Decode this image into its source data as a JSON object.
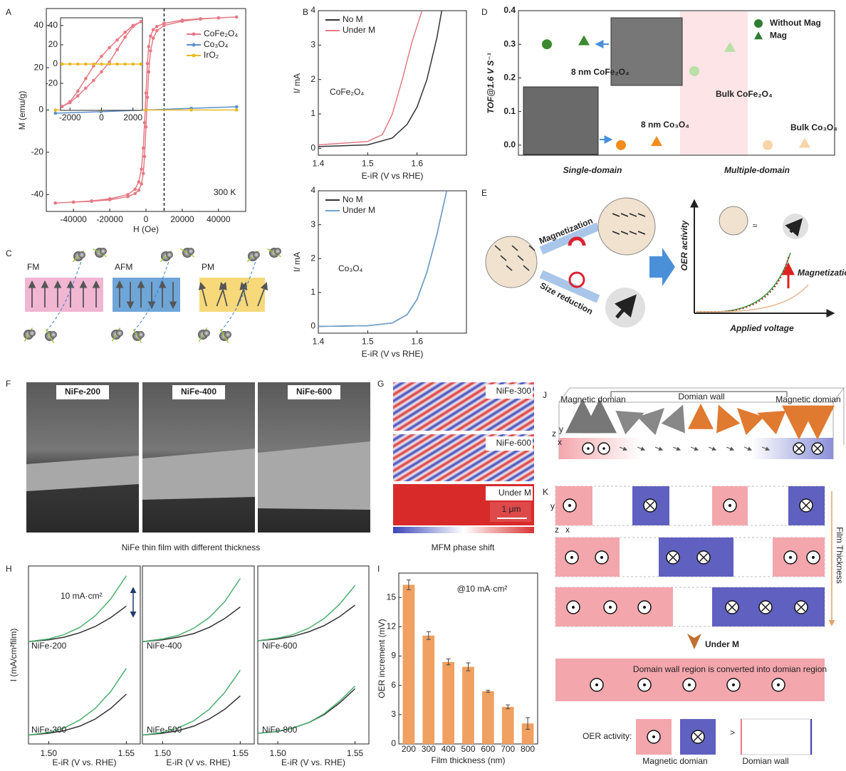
{
  "panel_letters": [
    "A",
    "B",
    "C",
    "D",
    "E",
    "F",
    "G",
    "H",
    "I",
    "J",
    "K"
  ],
  "chart_data": [
    {
      "type": "line",
      "xlabel": "H (Oe)",
      "ylabel": "M (emu/g)",
      "xlim": [
        -55000,
        55000
      ],
      "ylim": [
        -48,
        48
      ],
      "xticks": [
        -40000,
        -20000,
        0,
        20000,
        40000
      ],
      "yticks": [
        -40,
        -20,
        0,
        20,
        40
      ],
      "vline": 10000,
      "legend": "upper right",
      "annotations": [
        "300 K"
      ],
      "series": [
        {
          "name": "CoFe₂O₄",
          "color": "#e57a85",
          "marker": "o",
          "x": [
            -50000,
            -40000,
            -30000,
            -20000,
            -10000,
            -6000,
            -4000,
            -2500,
            -1500,
            -800,
            0,
            800,
            1500,
            2500,
            4000,
            6000,
            10000,
            20000,
            30000,
            40000,
            50000,
            40000,
            30000,
            20000,
            10000,
            6000,
            4000,
            2500,
            1500,
            800,
            0,
            -800,
            -1500,
            -2500,
            -4000,
            -6000,
            -10000,
            -20000,
            -30000,
            -40000,
            -50000
          ],
          "values": [
            -44,
            -43.6,
            -43.2,
            -42.5,
            -41,
            -39.5,
            -38,
            -35,
            -30,
            -22,
            -8,
            6,
            18,
            28,
            34,
            37.5,
            40,
            42,
            43,
            43.6,
            44,
            43.6,
            43.2,
            42.5,
            41,
            39.5,
            38,
            35,
            30,
            22,
            8,
            -6,
            -18,
            -28,
            -34,
            -37.5,
            -40,
            -42,
            -43,
            -43.6,
            -44
          ]
        },
        {
          "name": "Co₃O₄",
          "color": "#5b8fc9",
          "marker": "o",
          "x": [
            -50000,
            -25000,
            0,
            25000,
            50000
          ],
          "values": [
            -1.5,
            -0.8,
            0,
            0.8,
            1.5
          ]
        },
        {
          "name": "IrO₂",
          "color": "#e8b923",
          "marker": "o",
          "x": [
            -50000,
            -25000,
            0,
            25000,
            50000
          ],
          "values": [
            0,
            0,
            0,
            0,
            0
          ]
        }
      ]
    },
    {
      "type": "line",
      "xlim": [
        -2600,
        2600
      ],
      "ylim": [
        -48,
        48
      ],
      "xticks": [
        -2000,
        0,
        2000
      ],
      "yticks": [
        -20,
        0,
        20,
        40
      ],
      "series": [
        {
          "color": "#e57a85",
          "marker": "o",
          "x": [
            -2500,
            -2000,
            -1500,
            -1000,
            -500,
            0,
            500,
            1000,
            1500,
            2000,
            2500,
            2000,
            1500,
            1000,
            500,
            0,
            -500,
            -1000,
            -1500,
            -2000,
            -2500
          ],
          "values": [
            -44,
            -40,
            -33,
            -25,
            -17,
            -8,
            2,
            15,
            28,
            39,
            44,
            40,
            33,
            25,
            17,
            8,
            -2,
            -15,
            -28,
            -39,
            -44
          ]
        },
        {
          "color": "#e8b923",
          "marker": "o",
          "x": [
            -2500,
            -2000,
            -1500,
            -1000,
            -500,
            0,
            500,
            1000,
            1500,
            2000,
            2500
          ],
          "values": [
            0,
            0,
            0,
            0,
            0,
            0,
            0,
            0,
            0,
            0,
            0
          ]
        }
      ]
    },
    {
      "type": "line",
      "xlabel": "E-iR (V vs RHE)",
      "ylabel": "I/ mA",
      "xlim": [
        1.4,
        1.7
      ],
      "ylim": [
        -0.2,
        4
      ],
      "xticks": [
        1.4,
        1.5,
        1.6
      ],
      "yticks": [
        0,
        1,
        2,
        3,
        4
      ],
      "legend": "upper left",
      "annotations": [
        "CoFe₂O₄"
      ],
      "series": [
        {
          "name": "No M",
          "color": "#333333",
          "x": [
            1.4,
            1.5,
            1.55,
            1.58,
            1.6,
            1.62,
            1.64,
            1.65
          ],
          "values": [
            0.05,
            0.1,
            0.3,
            0.7,
            1.2,
            2,
            3.2,
            4
          ]
        },
        {
          "name": "Under M",
          "color": "#e57a85",
          "x": [
            1.4,
            1.5,
            1.53,
            1.55,
            1.57,
            1.59,
            1.61
          ],
          "values": [
            0.1,
            0.2,
            0.4,
            1,
            2,
            3.1,
            4
          ]
        }
      ]
    },
    {
      "type": "line",
      "xlabel": "E-iR (V vs RHE)",
      "ylabel": "I/ mA",
      "xlim": [
        1.4,
        1.7
      ],
      "ylim": [
        -0.2,
        4
      ],
      "xticks": [
        1.4,
        1.5,
        1.6
      ],
      "yticks": [
        0,
        1,
        2,
        3,
        4
      ],
      "legend": "upper left",
      "annotations": [
        "Co₃O₄"
      ],
      "series": [
        {
          "name": "No M",
          "color": "#333333",
          "x": [
            1.4,
            1.5,
            1.55,
            1.58,
            1.6,
            1.62,
            1.64,
            1.66
          ],
          "values": [
            0,
            0.02,
            0.1,
            0.35,
            0.8,
            1.6,
            2.7,
            4
          ]
        },
        {
          "name": "Under M",
          "color": "#6fa3d0",
          "x": [
            1.4,
            1.5,
            1.55,
            1.58,
            1.6,
            1.62,
            1.64,
            1.66
          ],
          "values": [
            0,
            0.02,
            0.1,
            0.35,
            0.8,
            1.6,
            2.7,
            4
          ]
        }
      ]
    },
    {
      "type": "scatter",
      "ylabel": "TOF@1.6 V S⁻¹",
      "ylim": [
        -0.03,
        0.4
      ],
      "yticks": [
        {
          "value": 0,
          "label": "0.0"
        },
        0.1,
        0.2,
        0.3,
        0.4
      ],
      "groups": [
        "Single-domain",
        "Multiple-domain"
      ],
      "legend": "upper right",
      "annotations": [
        "8 nm CoFe₂O₄",
        "8 nm Co₃O₄",
        "Bulk CoFe₂O₄",
        "Bulk Co₃O₄"
      ],
      "series": [
        {
          "name": "Without Mag",
          "marker": "o",
          "color": "#2e7d32",
          "colors": [
            "#3a8a2e",
            "#f28c1e",
            "#b8e0a8",
            "#f8d4a8"
          ],
          "values": [
            0.3,
            0,
            0.22,
            0
          ]
        },
        {
          "name": "Mag",
          "marker": "^",
          "color": "#2e7d32",
          "colors": [
            "#3a8a2e",
            "#f28c1e",
            "#b8e0a8",
            "#f8d4a8"
          ],
          "values": [
            0.31,
            0.01,
            0.29,
            0.005
          ]
        }
      ]
    },
    {
      "type": "line",
      "ylabel": "I (mA/cm²film)",
      "xlim": [
        1.487,
        1.559
      ],
      "ylim": [
        0,
        10
      ],
      "annotations": [
        "NiFe-200",
        "10 mA·cm²"
      ],
      "series": [
        {
          "color": "#333333",
          "x": [
            1.487,
            1.5,
            1.51,
            1.52,
            1.53,
            1.54,
            1.55
          ],
          "values": [
            1.5,
            1.7,
            2,
            2.5,
            3.2,
            4.2,
            5.5
          ]
        },
        {
          "color": "#4caf70",
          "x": [
            1.487,
            1.5,
            1.51,
            1.52,
            1.53,
            1.54,
            1.55
          ],
          "values": [
            1.5,
            1.8,
            2.3,
            3.1,
            4.4,
            6.3,
            8.9
          ]
        }
      ]
    },
    {
      "type": "line",
      "xlim": [
        1.487,
        1.559
      ],
      "ylim": [
        0,
        10
      ],
      "annotations": [
        "NiFe-400"
      ],
      "series": [
        {
          "color": "#333333",
          "x": [
            1.487,
            1.5,
            1.51,
            1.52,
            1.53,
            1.54,
            1.55
          ],
          "values": [
            1.5,
            1.7,
            2,
            2.4,
            3.1,
            4.1,
            5.4
          ]
        },
        {
          "color": "#4caf70",
          "x": [
            1.487,
            1.5,
            1.51,
            1.52,
            1.53,
            1.54,
            1.55
          ],
          "values": [
            1.5,
            1.8,
            2.2,
            3,
            4.2,
            6,
            8.6
          ]
        }
      ]
    },
    {
      "type": "line",
      "xlim": [
        1.487,
        1.559
      ],
      "ylim": [
        0,
        10
      ],
      "annotations": [
        "NiFe-600"
      ],
      "series": [
        {
          "color": "#333333",
          "x": [
            1.487,
            1.5,
            1.51,
            1.52,
            1.53,
            1.54,
            1.55
          ],
          "values": [
            1.6,
            1.8,
            2.1,
            2.6,
            3.3,
            4.3,
            5.6
          ]
        },
        {
          "color": "#4caf70",
          "x": [
            1.487,
            1.5,
            1.51,
            1.52,
            1.53,
            1.54,
            1.55
          ],
          "values": [
            1.6,
            1.9,
            2.3,
            3,
            4.1,
            5.7,
            7.8
          ]
        }
      ]
    },
    {
      "type": "line",
      "xlabel": "E-iR (V vs. RHE)",
      "xlim": [
        1.487,
        1.559
      ],
      "ylim": [
        0,
        10
      ],
      "xticks": [
        {
          "value": 1.5,
          "label": "1.50"
        },
        1.55
      ],
      "annotations": [
        "NiFe-300"
      ],
      "series": [
        {
          "color": "#333333",
          "x": [
            1.487,
            1.5,
            1.51,
            1.52,
            1.53,
            1.54,
            1.55
          ],
          "values": [
            1,
            1.2,
            1.5,
            2,
            2.8,
            4,
            5.6
          ]
        },
        {
          "color": "#4caf70",
          "x": [
            1.487,
            1.5,
            1.51,
            1.52,
            1.53,
            1.54,
            1.55
          ],
          "values": [
            1,
            1.3,
            1.8,
            2.7,
            4,
            5.9,
            8.5
          ]
        }
      ]
    },
    {
      "type": "line",
      "xlabel": "E-iR (V vs. RHE)",
      "xlim": [
        1.487,
        1.559
      ],
      "ylim": [
        0,
        10
      ],
      "xticks": [
        {
          "value": 1.5,
          "label": "1.50"
        },
        1.55
      ],
      "annotations": [
        "NiFe-500"
      ],
      "series": [
        {
          "color": "#333333",
          "x": [
            1.487,
            1.5,
            1.51,
            1.52,
            1.53,
            1.54,
            1.55
          ],
          "values": [
            1,
            1.2,
            1.5,
            2,
            2.8,
            3.9,
            5.4
          ]
        },
        {
          "color": "#4caf70",
          "x": [
            1.487,
            1.5,
            1.51,
            1.52,
            1.53,
            1.54,
            1.55
          ],
          "values": [
            1,
            1.3,
            1.8,
            2.6,
            3.9,
            5.8,
            8.3
          ]
        }
      ]
    },
    {
      "type": "line",
      "xlabel": "E-iR (V vs. RHE)",
      "xlim": [
        1.487,
        1.559
      ],
      "ylim": [
        0,
        10
      ],
      "xticks": [
        {
          "value": 1.5,
          "label": "1.50"
        },
        1.55
      ],
      "annotations": [
        "NiFe-800"
      ],
      "series": [
        {
          "color": "#333333",
          "x": [
            1.487,
            1.5,
            1.51,
            1.52,
            1.53,
            1.54,
            1.55
          ],
          "values": [
            1.2,
            1.4,
            1.8,
            2.4,
            3.3,
            4.6,
            6.2
          ]
        },
        {
          "color": "#4caf70",
          "x": [
            1.487,
            1.5,
            1.51,
            1.52,
            1.53,
            1.54,
            1.55
          ],
          "values": [
            1.2,
            1.4,
            1.8,
            2.4,
            3.4,
            4.8,
            6.5
          ]
        }
      ]
    },
    {
      "type": "bar",
      "xlabel": "Film thickness (nm)",
      "ylabel": "OER increment (mV)",
      "ylim": [
        0,
        17.5
      ],
      "yticks": [
        0,
        3,
        6,
        9,
        12,
        15
      ],
      "categories": [
        "200",
        "300",
        "400",
        "500",
        "600",
        "700",
        "800"
      ],
      "values": [
        16.3,
        11.1,
        8.4,
        7.9,
        5.4,
        3.8,
        2.1
      ],
      "errors": [
        0.5,
        0.4,
        0.3,
        0.4,
        0.1,
        0.2,
        0.6
      ],
      "color": "#f0a060",
      "annotations": [
        "@10 mA·cm²"
      ]
    }
  ],
  "panel_c": {
    "labels": [
      "FM",
      "AFM",
      "PM"
    ]
  },
  "panel_e": {
    "arrow_labels": [
      "Magnetization",
      "Size reduction"
    ],
    "approx": "≈",
    "ylabel": "OER activity",
    "xlabel": "Applied voltage",
    "annotation": "Magnetization"
  },
  "panel_f": {
    "images": [
      "NiFe-200",
      "NiFe-400",
      "NiFe-600"
    ],
    "caption": "NiFe thin film with different thickness"
  },
  "panel_g": {
    "images": [
      "NiFe-300",
      "NiFe-600",
      "Under M"
    ],
    "scale_bar": "1 μm",
    "caption": "MFM phase shift"
  },
  "panel_j": {
    "labels": [
      "Magnetic domian",
      "Domian wall",
      "Magnetic domian"
    ],
    "axes": [
      "z",
      "y",
      "x"
    ]
  },
  "panel_k": {
    "side_label": "Film Thickness",
    "under": "Under M",
    "note": "Domain wall region is converted into domian region",
    "legend_prefix": "OER activity:",
    "gt": ">",
    "legend_labels": [
      "Magnetic domian",
      "Domian wall"
    ],
    "axes": [
      "y",
      "z",
      "x"
    ]
  }
}
